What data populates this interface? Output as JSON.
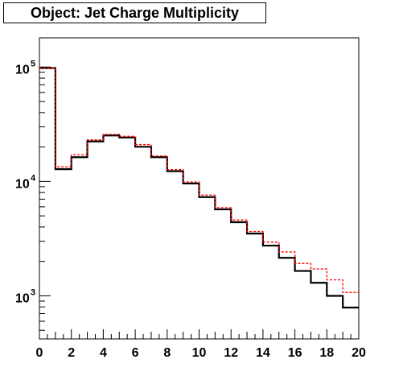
{
  "chart_data": {
    "type": "line",
    "title": "Object: Jet Charge Multiplicity",
    "xlabel": "",
    "ylabel": "",
    "xlim": [
      0,
      20
    ],
    "ylim": [
      420,
      180000
    ],
    "y_scale": "log",
    "grid": false,
    "x_ticks": [
      0,
      2,
      4,
      6,
      8,
      10,
      12,
      14,
      16,
      18,
      20
    ],
    "y_ticks": [
      {
        "base": "10",
        "exp": "3",
        "value": 1000
      },
      {
        "base": "10",
        "exp": "4",
        "value": 10000
      },
      {
        "base": "10",
        "exp": "5",
        "value": 100000
      }
    ],
    "bin_edges": [
      0,
      1,
      2,
      3,
      4,
      5,
      6,
      7,
      8,
      9,
      10,
      11,
      12,
      13,
      14,
      15,
      16,
      17,
      18,
      19,
      20
    ],
    "series": [
      {
        "style": "solid",
        "color": "#000000",
        "values": [
          98000,
          12800,
          16300,
          22400,
          25200,
          24200,
          20100,
          16300,
          12300,
          9600,
          7300,
          5700,
          4400,
          3500,
          2750,
          2150,
          1650,
          1300,
          1000,
          790
        ]
      },
      {
        "style": "dashed",
        "color": "#ff0000",
        "values": [
          98000,
          13400,
          17100,
          23100,
          25800,
          24800,
          21000,
          16700,
          12700,
          9900,
          7600,
          5900,
          4600,
          3650,
          2950,
          2420,
          1920,
          1720,
          1380,
          1070
        ]
      }
    ]
  }
}
